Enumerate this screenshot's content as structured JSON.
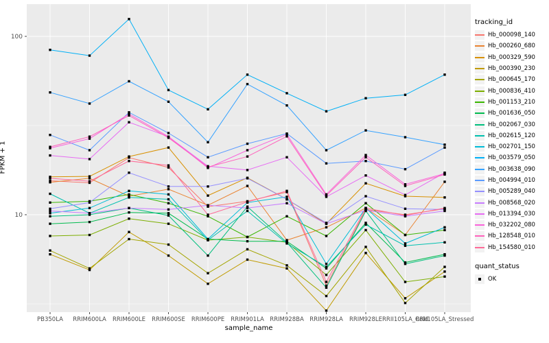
{
  "axes": {
    "x_label": "sample_name",
    "y_label": "FPKM + 1",
    "y_ticks": [
      {
        "label": "100",
        "value": 100
      },
      {
        "label": "10",
        "value": 10
      }
    ],
    "minor_grid_values": [
      31.62,
      3.162
    ],
    "tick_color": "#333333",
    "axis_text_color": "#4D4D4D"
  },
  "panel": {
    "bg": "#EBEBEB",
    "grid": "#FFFFFF"
  },
  "legend": {
    "tracking_title": "tracking_id",
    "quant_title": "quant_status",
    "quant_ok_label": "OK",
    "point_color": "#000000"
  },
  "chart_data": {
    "type": "line",
    "x_scale": "categorical",
    "y_scale": "log10",
    "ylim": [
      2.5,
      140
    ],
    "grid": "on",
    "legend_position": "right",
    "marker": "black-square",
    "categories": [
      "PB350LA",
      "RRIM600LA",
      "RRIM600LE",
      "RRIM600SE",
      "RRIM600PE",
      "RRIM901LA",
      "RRIM928BA",
      "RRIM928LA",
      "RRIM928LE",
      "RRII105LA_Cold",
      "RRII105LA_Stressed"
    ],
    "series": [
      {
        "name": "Hb_000098_140",
        "color": "#F8766D",
        "values": [
          15.5,
          15.1,
          20.9,
          18.4,
          11.1,
          11.9,
          13.4,
          4.0,
          10.7,
          10.0,
          10.8
        ]
      },
      {
        "name": "Hb_000260_680",
        "color": "#EA8331",
        "values": [
          15.2,
          16.0,
          12.7,
          13.9,
          11.3,
          14.5,
          7.2,
          8.5,
          10.9,
          7.7,
          15.3
        ]
      },
      {
        "name": "Hb_000329_590",
        "color": "#D89000",
        "values": [
          16.3,
          16.4,
          21.2,
          23.8,
          12.8,
          16.1,
          12.2,
          8.9,
          15.0,
          12.7,
          12.5
        ]
      },
      {
        "name": "Hb_000390_230",
        "color": "#C09B00",
        "values": [
          6.0,
          4.9,
          8.0,
          5.9,
          4.1,
          5.6,
          5.0,
          2.9,
          6.1,
          3.4,
          4.8
        ]
      },
      {
        "name": "Hb_000645_170",
        "color": "#A3A500",
        "values": [
          6.3,
          5.0,
          7.3,
          6.8,
          4.7,
          6.4,
          5.2,
          3.5,
          6.6,
          3.2,
          5.1
        ]
      },
      {
        "name": "Hb_000836_410",
        "color": "#7CAE00",
        "values": [
          7.6,
          7.7,
          9.5,
          8.9,
          7.2,
          7.5,
          7.0,
          4.6,
          8.2,
          4.2,
          4.5
        ]
      },
      {
        "name": "Hb_001153_210",
        "color": "#39B600",
        "values": [
          11.7,
          11.9,
          13.0,
          11.6,
          9.8,
          7.5,
          9.8,
          7.6,
          11.6,
          7.7,
          8.2
        ]
      },
      {
        "name": "Hb_001636_050",
        "color": "#00BB4E",
        "values": [
          8.9,
          9.1,
          10.3,
          10.2,
          7.3,
          7.1,
          7.1,
          5.0,
          9.0,
          5.4,
          6.0
        ]
      },
      {
        "name": "Hb_002067_030",
        "color": "#00BF7D",
        "values": [
          9.8,
          10.0,
          10.9,
          9.9,
          5.9,
          11.1,
          7.0,
          3.9,
          10.5,
          5.3,
          5.9
        ]
      },
      {
        "name": "Hb_002615_120",
        "color": "#00C0AF",
        "values": [
          13.1,
          10.2,
          12.5,
          12.2,
          7.2,
          10.5,
          6.9,
          5.1,
          8.8,
          6.7,
          7.0
        ]
      },
      {
        "name": "Hb_002701_150",
        "color": "#00BCD8",
        "values": [
          10.2,
          10.9,
          13.6,
          13.0,
          7.3,
          11.7,
          12.6,
          5.3,
          10.9,
          6.9,
          8.5
        ]
      },
      {
        "name": "Hb_003579_050",
        "color": "#00B0F6",
        "values": [
          84,
          78,
          125,
          50,
          39,
          61,
          48,
          38,
          45,
          47,
          61
        ]
      },
      {
        "name": "Hb_003638_090",
        "color": "#35A2FF",
        "values": [
          48.5,
          42,
          56,
          43,
          25.5,
          54,
          41,
          23,
          29.7,
          27.2,
          24.7
        ]
      },
      {
        "name": "Hb_004994_010",
        "color": "#5B9BFF",
        "values": [
          28,
          23,
          37.5,
          28.7,
          21,
          25,
          28.5,
          19.4,
          20,
          18,
          23.8
        ]
      },
      {
        "name": "Hb_005289_040",
        "color": "#9590FF",
        "values": [
          10.8,
          11.7,
          17.2,
          14.4,
          14.4,
          16.0,
          12.2,
          9.0,
          12.7,
          10.8,
          10.7
        ]
      },
      {
        "name": "Hb_008568_020",
        "color": "#C77CFF",
        "values": [
          10.5,
          10.2,
          10.9,
          10.7,
          11.3,
          10.9,
          11.6,
          8.9,
          10.6,
          9.8,
          10.5
        ]
      },
      {
        "name": "Hb_013394_030",
        "color": "#E76BF3",
        "values": [
          21.5,
          20.5,
          33.0,
          27.4,
          18.7,
          17.8,
          21.0,
          12.6,
          16.6,
          12.9,
          17.2
        ]
      },
      {
        "name": "Hb_032202_080",
        "color": "#FA62DB",
        "values": [
          23.6,
          26.7,
          36.7,
          27.4,
          18.3,
          23.0,
          28.2,
          13.0,
          21.6,
          14.8,
          17.0
        ]
      },
      {
        "name": "Hb_128548_010",
        "color": "#FF62BC",
        "values": [
          24.0,
          27.4,
          36.0,
          27.0,
          18.5,
          21.2,
          27.5,
          12.8,
          21.0,
          14.5,
          16.8
        ]
      },
      {
        "name": "Hb_154580_010",
        "color": "#FF6A98",
        "values": [
          16.0,
          15.4,
          20.0,
          18.9,
          10.0,
          11.8,
          13.6,
          4.2,
          10.9,
          9.9,
          10.9
        ]
      }
    ]
  }
}
